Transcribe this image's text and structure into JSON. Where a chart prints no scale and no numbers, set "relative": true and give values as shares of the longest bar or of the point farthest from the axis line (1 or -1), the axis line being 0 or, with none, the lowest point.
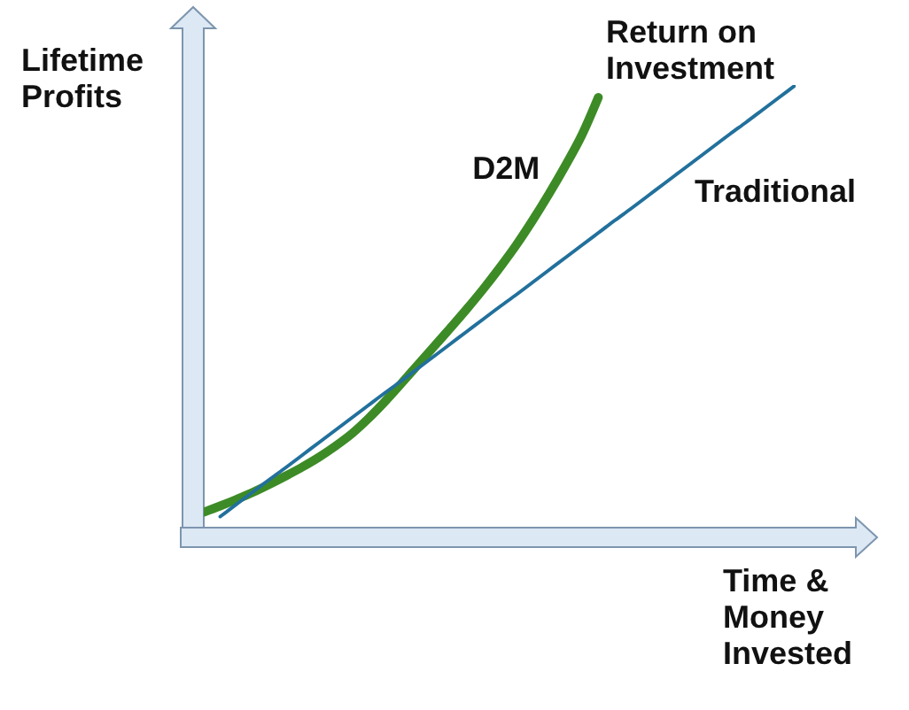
{
  "chart_data": {
    "type": "line",
    "title": "Return on Investment",
    "xlabel": "Time & Money Invested",
    "ylabel": "Lifetime Profits",
    "relative": true,
    "marker": "none",
    "categories": [
      null,
      null,
      null,
      null,
      null,
      null,
      null,
      null,
      null,
      null,
      null,
      null,
      null,
      null,
      null,
      null,
      null,
      null,
      null,
      null,
      null,
      null,
      null,
      null,
      null,
      null,
      null,
      null,
      null,
      null,
      null,
      null,
      null,
      null,
      null,
      null,
      null
    ],
    "series": [
      {
        "name": "D2M",
        "color": "#3d8b26",
        "values": [
          0.035,
          0.049,
          0.064,
          0.08,
          0.098,
          0.117,
          0.137,
          0.159,
          0.184,
          0.212,
          0.246,
          0.284,
          0.325,
          0.367,
          0.409,
          0.451,
          0.494,
          0.539,
          0.587,
          0.638,
          0.694,
          0.754,
          0.818,
          0.887,
          0.972,
          null,
          null,
          null,
          null,
          null,
          null,
          null,
          null,
          null,
          null,
          null,
          null
        ]
      },
      {
        "name": "Traditional",
        "color": "#22709c",
        "values": [
          null,
          0.025,
          0.053,
          0.081,
          0.109,
          0.136,
          0.164,
          0.192,
          0.22,
          0.248,
          0.276,
          0.304,
          0.331,
          0.359,
          0.387,
          0.415,
          0.443,
          0.471,
          0.499,
          0.526,
          0.554,
          0.582,
          0.61,
          0.638,
          0.666,
          0.694,
          0.721,
          0.749,
          0.777,
          0.805,
          0.833,
          0.861,
          0.889,
          0.916,
          0.944,
          0.972,
          1.0
        ]
      }
    ]
  }
}
